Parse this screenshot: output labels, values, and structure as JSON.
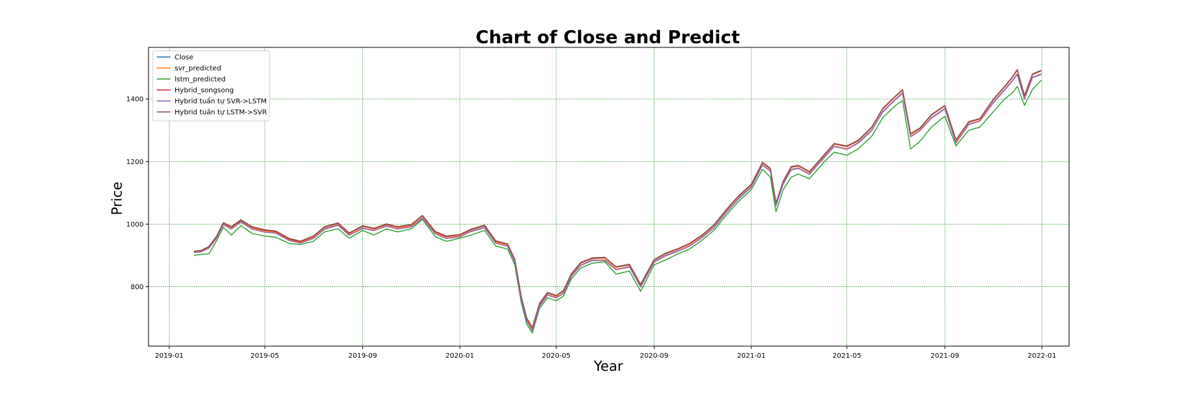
{
  "chart_data": {
    "type": "line",
    "title": "Chart of Close and Predict",
    "xlabel": "Year",
    "ylabel": "Price",
    "xlim": [
      "2018-12-06",
      "2022-02-04"
    ],
    "ylim": [
      610,
      1565
    ],
    "x_ticks": [
      "2019-01",
      "2019-05",
      "2019-09",
      "2020-01",
      "2020-05",
      "2020-09",
      "2021-01",
      "2021-05",
      "2021-09",
      "2022-01"
    ],
    "y_ticks": [
      800,
      1000,
      1200,
      1400
    ],
    "grid": true,
    "grid_color": "#008000",
    "legend_position": "upper-left",
    "x": [
      "2019-02-01",
      "2019-02-10",
      "2019-02-20",
      "2019-03-01",
      "2019-03-10",
      "2019-03-20",
      "2019-04-01",
      "2019-04-15",
      "2019-05-01",
      "2019-05-15",
      "2019-06-01",
      "2019-06-15",
      "2019-07-01",
      "2019-07-15",
      "2019-08-01",
      "2019-08-15",
      "2019-09-01",
      "2019-09-15",
      "2019-10-01",
      "2019-10-15",
      "2019-11-01",
      "2019-11-15",
      "2019-12-01",
      "2019-12-15",
      "2020-01-01",
      "2020-01-15",
      "2020-02-01",
      "2020-02-15",
      "2020-03-01",
      "2020-03-10",
      "2020-03-18",
      "2020-03-25",
      "2020-04-01",
      "2020-04-10",
      "2020-04-20",
      "2020-05-01",
      "2020-05-10",
      "2020-05-20",
      "2020-06-01",
      "2020-06-15",
      "2020-07-01",
      "2020-07-15",
      "2020-08-01",
      "2020-08-15",
      "2020-09-01",
      "2020-09-15",
      "2020-10-01",
      "2020-10-15",
      "2020-11-01",
      "2020-11-15",
      "2020-12-01",
      "2020-12-15",
      "2021-01-01",
      "2021-01-15",
      "2021-01-25",
      "2021-02-01",
      "2021-02-10",
      "2021-02-20",
      "2021-03-01",
      "2021-03-15",
      "2021-04-01",
      "2021-04-15",
      "2021-05-01",
      "2021-05-15",
      "2021-06-01",
      "2021-06-15",
      "2021-07-01",
      "2021-07-10",
      "2021-07-20",
      "2021-08-01",
      "2021-08-15",
      "2021-09-01",
      "2021-09-15",
      "2021-10-01",
      "2021-10-15",
      "2021-11-01",
      "2021-11-15",
      "2021-11-25",
      "2021-12-01",
      "2021-12-10",
      "2021-12-20",
      "2021-12-31"
    ],
    "series": [
      {
        "name": "Close",
        "color": "#1f77b4",
        "offset": 0,
        "values": [
          910,
          912,
          925,
          955,
          1000,
          985,
          1008,
          985,
          975,
          972,
          948,
          940,
          955,
          985,
          998,
          965,
          988,
          980,
          995,
          985,
          992,
          1020,
          970,
          955,
          960,
          978,
          990,
          940,
          930,
          880,
          760,
          690,
          660,
          740,
          775,
          765,
          780,
          835,
          870,
          885,
          885,
          855,
          865,
          800,
          880,
          900,
          915,
          930,
          960,
          990,
          1040,
          1080,
          1120,
          1190,
          1170,
          1060,
          1130,
          1175,
          1180,
          1160,
          1210,
          1250,
          1240,
          1260,
          1300,
          1360,
          1400,
          1420,
          1280,
          1300,
          1340,
          1370,
          1260,
          1320,
          1330,
          1390,
          1430,
          1460,
          1480,
          1400,
          1470,
          1480
        ]
      },
      {
        "name": "svr_predicted",
        "color": "#ff7f0e",
        "offset": 0,
        "values": [
          911,
          913,
          924,
          954,
          999,
          986,
          1007,
          986,
          976,
          973,
          949,
          941,
          956,
          984,
          997,
          966,
          987,
          981,
          994,
          986,
          993,
          1019,
          971,
          956,
          961,
          977,
          989,
          941,
          931,
          882,
          762,
          692,
          662,
          738,
          774,
          766,
          779,
          834,
          869,
          884,
          886,
          856,
          864,
          802,
          879,
          899,
          914,
          931,
          959,
          989,
          1039,
          1079,
          1119,
          1189,
          1171,
          1062,
          1129,
          1174,
          1179,
          1161,
          1209,
          1249,
          1241,
          1259,
          1299,
          1359,
          1399,
          1419,
          1282,
          1301,
          1339,
          1369,
          1262,
          1319,
          1331,
          1389,
          1429,
          1459,
          1479,
          1402,
          1469,
          1479
        ]
      },
      {
        "name": "lstm_predicted",
        "color": "#2ca02c",
        "offset": 0,
        "values": [
          900,
          903,
          905,
          945,
          990,
          965,
          995,
          970,
          962,
          958,
          938,
          935,
          945,
          975,
          985,
          955,
          980,
          965,
          985,
          975,
          985,
          1015,
          960,
          945,
          955,
          965,
          980,
          930,
          920,
          870,
          750,
          680,
          652,
          730,
          765,
          755,
          770,
          825,
          860,
          875,
          880,
          840,
          850,
          785,
          870,
          885,
          905,
          920,
          950,
          980,
          1030,
          1070,
          1110,
          1175,
          1150,
          1040,
          1110,
          1150,
          1160,
          1145,
          1195,
          1230,
          1220,
          1240,
          1280,
          1340,
          1380,
          1395,
          1240,
          1265,
          1310,
          1345,
          1250,
          1300,
          1310,
          1360,
          1400,
          1420,
          1440,
          1380,
          1430,
          1460
        ]
      },
      {
        "name": "Hybrid_songsong",
        "color": "#d62728",
        "offset": 0,
        "values": [
          912,
          915,
          928,
          958,
          1003,
          990,
          1012,
          990,
          980,
          976,
          952,
          944,
          960,
          990,
          1002,
          970,
          993,
          985,
          999,
          990,
          997,
          1026,
          975,
          960,
          965,
          982,
          995,
          945,
          935,
          886,
          768,
          698,
          668,
          745,
          780,
          770,
          786,
          840,
          876,
          890,
          892,
          862,
          870,
          806,
          885,
          905,
          920,
          936,
          965,
          996,
          1046,
          1086,
          1126,
          1196,
          1176,
          1066,
          1136,
          1182,
          1186,
          1166,
          1216,
          1256,
          1248,
          1266,
          1308,
          1368,
          1408,
          1428,
          1288,
          1306,
          1348,
          1378,
          1268,
          1326,
          1336,
          1398,
          1438,
          1470,
          1492,
          1410,
          1478,
          1490
        ]
      },
      {
        "name": "Hybrid tuần tự SVR->LSTM",
        "color": "#9467bd",
        "offset": 0,
        "values": [
          909,
          911,
          923,
          953,
          998,
          984,
          1006,
          984,
          974,
          971,
          947,
          939,
          954,
          983,
          996,
          964,
          986,
          979,
          993,
          984,
          991,
          1018,
          969,
          954,
          959,
          976,
          988,
          939,
          929,
          879,
          759,
          689,
          659,
          737,
          773,
          764,
          778,
          833,
          868,
          883,
          884,
          854,
          863,
          799,
          878,
          898,
          913,
          929,
          958,
          988,
          1038,
          1078,
          1118,
          1188,
          1169,
          1059,
          1128,
          1173,
          1178,
          1159,
          1208,
          1248,
          1239,
          1258,
          1298,
          1358,
          1398,
          1418,
          1279,
          1299,
          1338,
          1368,
          1259,
          1318,
          1329,
          1388,
          1428,
          1458,
          1478,
          1399,
          1468,
          1478
        ]
      },
      {
        "name": "Hybrid tuần tự LSTM->SVR",
        "color": "#8c564b",
        "offset": 0,
        "values": [
          913,
          916,
          929,
          960,
          1005,
          992,
          1014,
          992,
          982,
          978,
          954,
          946,
          962,
          992,
          1004,
          972,
          995,
          987,
          1001,
          992,
          999,
          1028,
          977,
          962,
          967,
          984,
          997,
          947,
          937,
          888,
          770,
          700,
          670,
          747,
          782,
          772,
          788,
          842,
          878,
          892,
          894,
          864,
          872,
          808,
          887,
          907,
          922,
          938,
          967,
          998,
          1048,
          1088,
          1128,
          1198,
          1178,
          1068,
          1138,
          1184,
          1188,
          1168,
          1218,
          1258,
          1250,
          1268,
          1310,
          1370,
          1410,
          1430,
          1290,
          1308,
          1350,
          1380,
          1270,
          1328,
          1338,
          1400,
          1440,
          1472,
          1494,
          1412,
          1480,
          1492
        ]
      }
    ]
  }
}
